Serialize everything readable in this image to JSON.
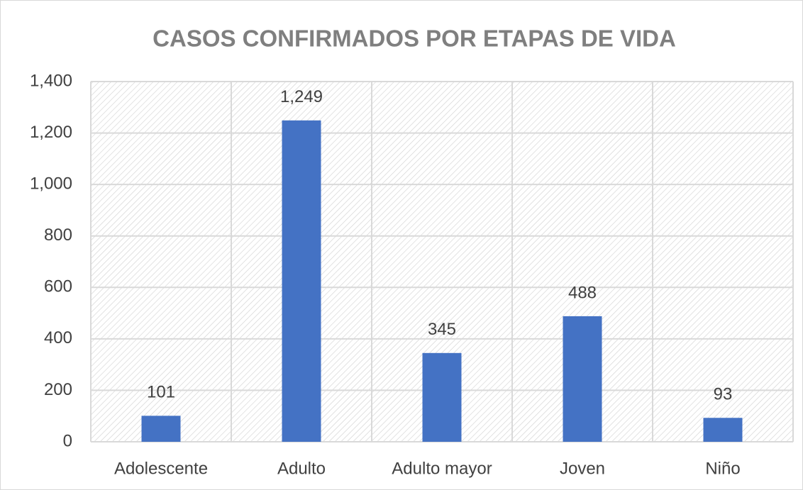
{
  "chart_data": {
    "type": "bar",
    "title": "CASOS CONFIRMADOS POR ETAPAS DE VIDA",
    "categories": [
      "Adolescente",
      "Adulto",
      "Adulto mayor",
      "Joven",
      "Niño"
    ],
    "values": [
      101,
      1249,
      345,
      488,
      93
    ],
    "value_labels": [
      "101",
      "1,249",
      "345",
      "488",
      "93"
    ],
    "color": "#4472c4",
    "ylim": [
      0,
      1400
    ],
    "yticks": [
      0,
      200,
      400,
      600,
      800,
      {
        "value": 1000,
        "label": "1,000"
      },
      {
        "value": 1200,
        "label": "1,200"
      },
      {
        "value": 1400,
        "label": "1,400"
      }
    ],
    "grid": true
  }
}
